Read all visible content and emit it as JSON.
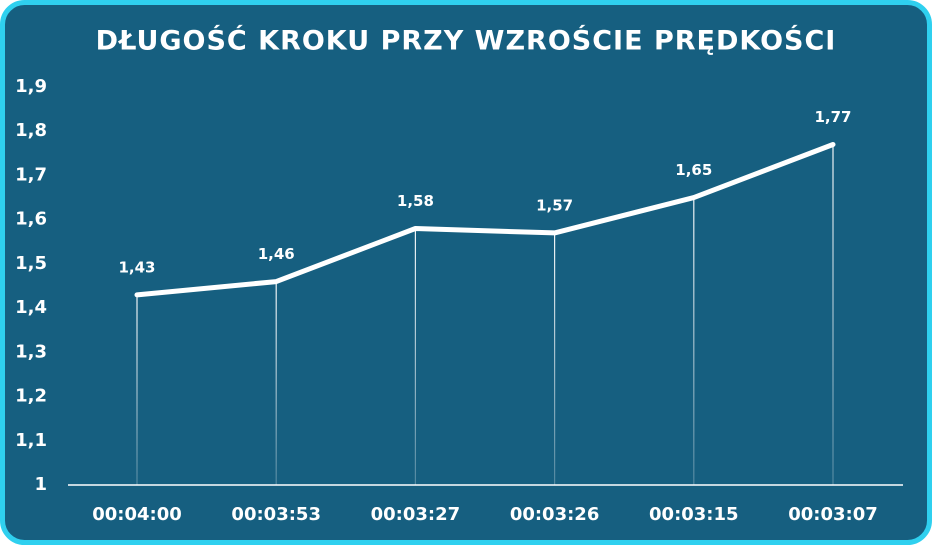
{
  "chart_data": {
    "type": "line",
    "title": "DŁUGOŚĆ KROKU PRZY WZROŚCIE PRĘDKOŚCI",
    "categories": [
      "00:04:00",
      "00:03:53",
      "00:03:27",
      "00:03:26",
      "00:03:15",
      "00:03:07"
    ],
    "values": [
      1.43,
      1.46,
      1.58,
      1.57,
      1.65,
      1.77
    ],
    "value_labels": [
      "1,43",
      "1,46",
      "1,58",
      "1,57",
      "1,65",
      "1,77"
    ],
    "color": "#ffffff",
    "ylim": [
      1,
      1.9
    ],
    "yticks": [
      1,
      {
        "value": 1.1,
        "label": "1,1"
      },
      {
        "value": 1.2,
        "label": "1,2"
      },
      {
        "value": 1.3,
        "label": "1,3"
      },
      {
        "value": 1.4,
        "label": "1,4"
      },
      {
        "value": 1.5,
        "label": "1,5"
      },
      {
        "value": 1.6,
        "label": "1,6"
      },
      {
        "value": 1.7,
        "label": "1,7"
      },
      {
        "value": 1.8,
        "label": "1,8"
      },
      {
        "value": 1.9,
        "label": "1,9"
      }
    ],
    "grid": false
  }
}
